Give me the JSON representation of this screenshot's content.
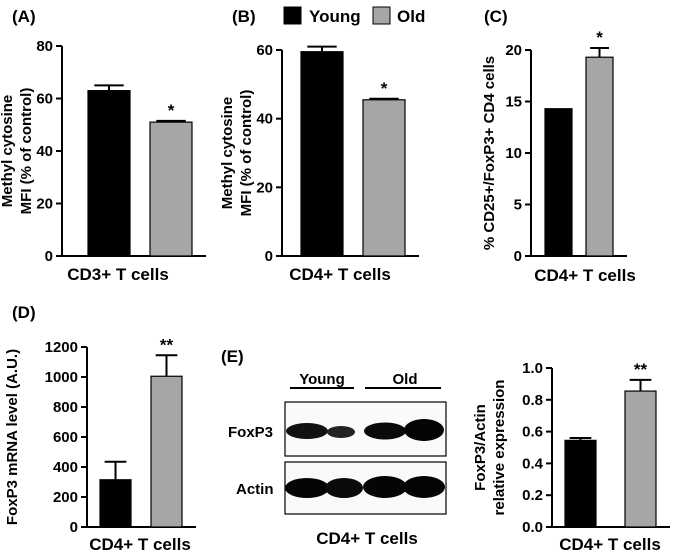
{
  "legend": {
    "items": [
      {
        "label": "Young",
        "color": "#000000"
      },
      {
        "label": "Old",
        "color": "#a6a6a6"
      }
    ],
    "placement": "top-center"
  },
  "blot": {
    "panel_label": "(E)",
    "group_labels": [
      "Young",
      "Old"
    ],
    "row_labels": [
      "FoxP3",
      "Actin"
    ],
    "xlabel": "CD4+ T cells"
  },
  "chart_data": [
    {
      "panel": "(A)",
      "type": "bar",
      "ylabel": [
        "Methyl cytosine",
        "MFI (% of control)"
      ],
      "xlabel": "CD3+ T cells",
      "ylim": [
        0,
        80
      ],
      "yticks": [
        0,
        20,
        40,
        60,
        80
      ],
      "series": [
        {
          "name": "Young",
          "value": 63,
          "err": 2
        },
        {
          "name": "Old",
          "value": 51,
          "err": 0.5
        }
      ],
      "significance": "*"
    },
    {
      "panel": "(B)",
      "type": "bar",
      "ylabel": [
        "Methyl cytosine",
        "MFI (% of control)"
      ],
      "xlabel": "CD4+ T cells",
      "ylim": [
        0,
        60
      ],
      "yticks": [
        0,
        20,
        40,
        60
      ],
      "series": [
        {
          "name": "Young",
          "value": 59.5,
          "err": 1.5
        },
        {
          "name": "Old",
          "value": 45.5,
          "err": 0.3
        }
      ],
      "significance": "*"
    },
    {
      "panel": "(C)",
      "type": "bar",
      "ylabel": [
        "% CD25+/FoxP3+ CD4 cells"
      ],
      "xlabel": "CD4+ T cells",
      "ylim": [
        0,
        20
      ],
      "yticks": [
        0,
        5,
        10,
        15,
        20
      ],
      "series": [
        {
          "name": "Young",
          "value": 14.3,
          "err": 0
        },
        {
          "name": "Old",
          "value": 19.3,
          "err": 0.9
        }
      ],
      "significance": "*"
    },
    {
      "panel": "(D)",
      "type": "bar",
      "ylabel": [
        "FoxP3 mRNA level (A.U.)"
      ],
      "xlabel": "CD4+ T cells",
      "ylim": [
        0,
        1200
      ],
      "yticks": [
        0,
        200,
        400,
        600,
        800,
        1000,
        1200
      ],
      "series": [
        {
          "name": "Young",
          "value": 315,
          "err": 120
        },
        {
          "name": "Old",
          "value": 1005,
          "err": 140
        }
      ],
      "significance": "**"
    },
    {
      "panel": "",
      "type": "bar",
      "ylabel": [
        "FoxP3/Actin",
        "relative expression"
      ],
      "xlabel": "CD4+ T cells",
      "ylim": [
        0,
        1.0
      ],
      "yticks": [
        "0.0",
        "0.2",
        "0.4",
        "0.6",
        "0.8",
        "1.0"
      ],
      "series": [
        {
          "name": "Young",
          "value": 0.545,
          "err": 0.015
        },
        {
          "name": "Old",
          "value": 0.855,
          "err": 0.07
        }
      ],
      "significance": "**"
    }
  ]
}
